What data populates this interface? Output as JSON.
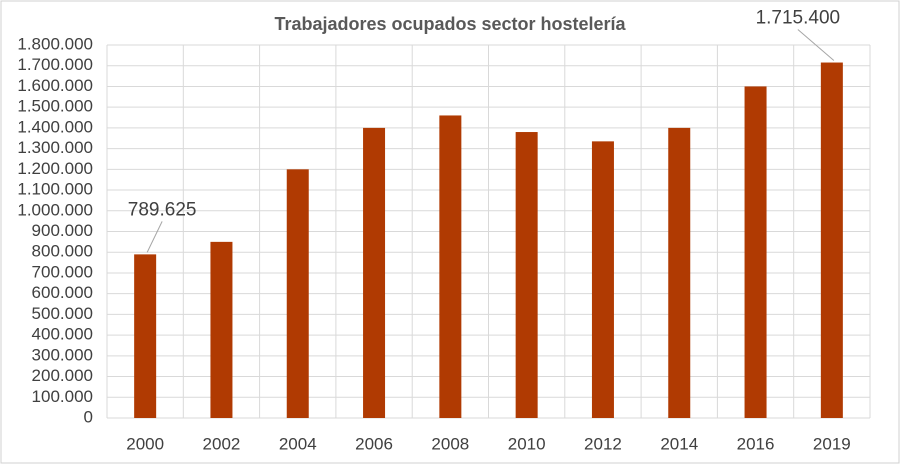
{
  "chart_data": {
    "type": "bar",
    "title": "Trabajadores ocupados sector hostelería",
    "categories": [
      "2000",
      "2002",
      "2004",
      "2006",
      "2008",
      "2010",
      "2012",
      "2014",
      "2016",
      "2019"
    ],
    "values": [
      789625,
      850000,
      1200000,
      1400000,
      1460000,
      1380000,
      1335000,
      1400000,
      1600000,
      1715400
    ],
    "value_labels": [
      "789.625",
      null,
      null,
      null,
      null,
      null,
      null,
      null,
      null,
      "1.715.400"
    ],
    "color": "#b03a02",
    "ylim": [
      0,
      1800000
    ],
    "yticks": [
      0,
      {
        "value": 100000,
        "label": "100.000"
      },
      {
        "value": 200000,
        "label": "200.000"
      },
      {
        "value": 300000,
        "label": "300.000"
      },
      {
        "value": 400000,
        "label": "400.000"
      },
      {
        "value": 500000,
        "label": "500.000"
      },
      {
        "value": 600000,
        "label": "600.000"
      },
      {
        "value": 700000,
        "label": "700.000"
      },
      {
        "value": 800000,
        "label": "800.000"
      },
      {
        "value": 900000,
        "label": "900.000"
      },
      {
        "value": 1000000,
        "label": "1.000.000"
      },
      {
        "value": 1100000,
        "label": "1.100.000"
      },
      {
        "value": 1200000,
        "label": "1.200.000"
      },
      {
        "value": 1300000,
        "label": "1.300.000"
      },
      {
        "value": 1400000,
        "label": "1.400.000"
      },
      {
        "value": 1500000,
        "label": "1.500.000"
      },
      {
        "value": 1600000,
        "label": "1.600.000"
      },
      {
        "value": 1700000,
        "label": "1.700.000"
      },
      {
        "value": 1800000,
        "label": "1.800.000"
      }
    ],
    "grid": true
  }
}
